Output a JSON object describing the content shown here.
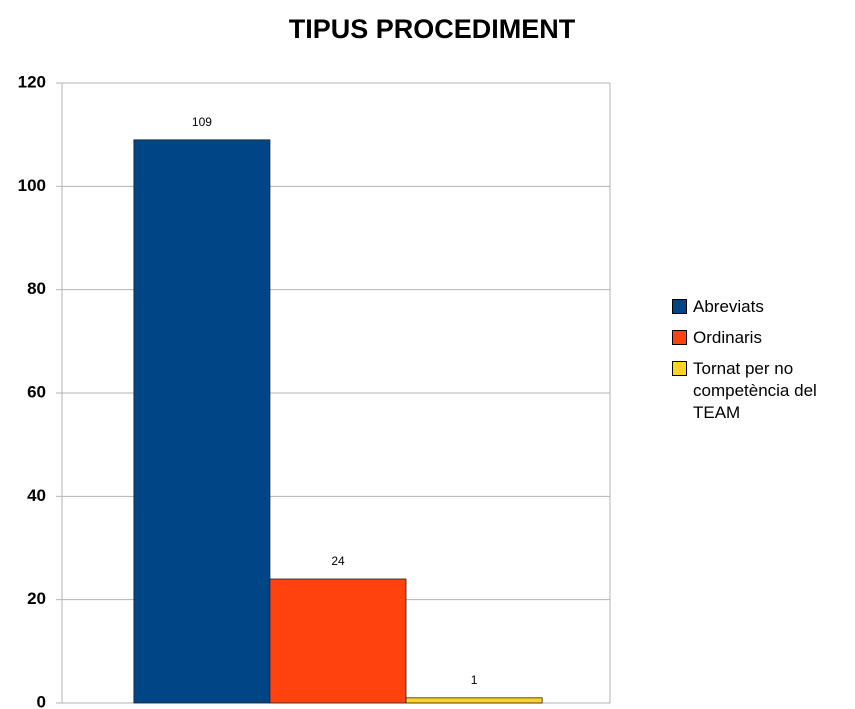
{
  "chart_data": {
    "type": "bar",
    "title": "TIPUS PROCEDIMENT",
    "categories": [
      null
    ],
    "series": [
      {
        "name": "Abreviats",
        "color": "#004586",
        "values": [
          109
        ]
      },
      {
        "name": "Ordinaris",
        "color": "#ff420e",
        "values": [
          24
        ]
      },
      {
        "name": "Tornat per no competència del TEAM",
        "color": "#ffd320",
        "values": [
          1
        ]
      }
    ],
    "ylim": [
      0,
      120
    ],
    "yticks": [
      0,
      20,
      40,
      60,
      80,
      100,
      120
    ],
    "grid": true,
    "legend": "right"
  }
}
